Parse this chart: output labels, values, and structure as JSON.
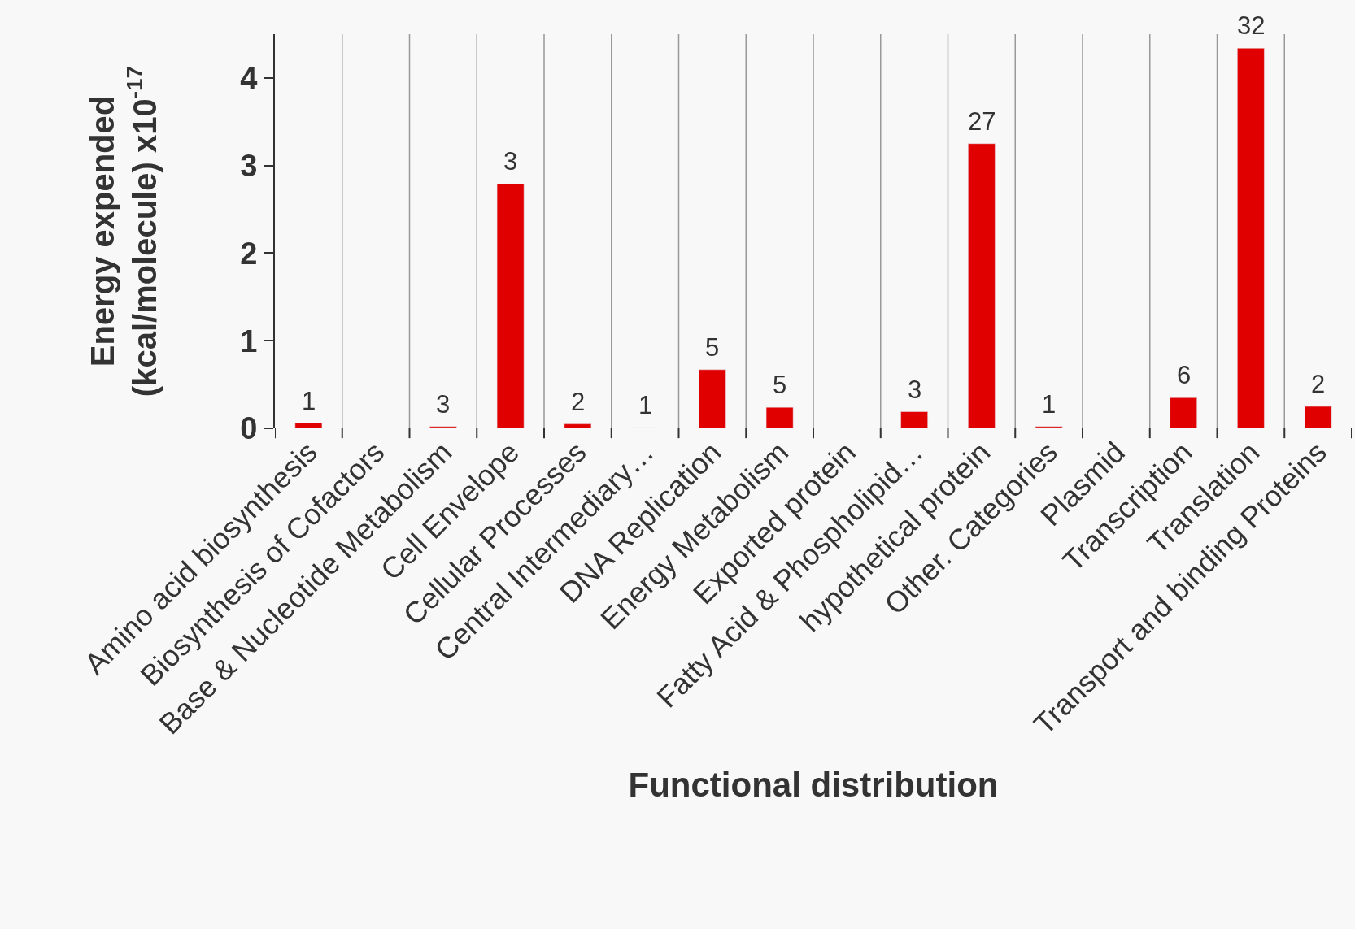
{
  "chart_data": {
    "type": "bar",
    "xlabel": "Functional distribution",
    "ylabel": "Energy expended\n(kcal/molecule) x10$^{-17}$",
    "categories": [
      "Amino acid biosynthesis",
      "Biosynthesis of Cofactors",
      "Base & Nucleotide Metabolism",
      "Cell Envelope",
      "Cellular Processes",
      "Central Intermediary…",
      "DNA Replication",
      "Energy Metabolism",
      "Exported protein",
      "Fatty Acid & Phospholipid…",
      "hypothetical protein",
      "Other. Categories",
      "Plasmid",
      "Transcription",
      "Translation",
      "Transport and binding Proteins"
    ],
    "values": [
      0.06,
      null,
      0.02,
      2.79,
      0.05,
      0.01,
      0.67,
      0.24,
      null,
      0.19,
      3.25,
      0.02,
      null,
      0.35,
      4.34,
      0.25
    ],
    "annotations": [
      {
        "text": "1",
        "x": "Amino acid biosynthesis",
        "y": 0.06
      },
      {
        "text": "3",
        "x": "Base & Nucleotide Metabolism",
        "y": 0.02
      },
      {
        "text": "3",
        "x": "Cell Envelope",
        "y": 2.79
      },
      {
        "text": "2",
        "x": "Cellular Processes",
        "y": 0.05
      },
      {
        "text": "1",
        "x": "Central Intermediary…",
        "y": 0.01
      },
      {
        "text": "5",
        "x": "DNA Replication",
        "y": 0.67
      },
      {
        "text": "5",
        "x": "Energy Metabolism",
        "y": 0.24
      },
      {
        "text": "3",
        "x": "Fatty Acid & Phospholipid…",
        "y": 0.19
      },
      {
        "text": "27",
        "x": "hypothetical protein",
        "y": 3.25
      },
      {
        "text": "1",
        "x": "Other. Categories",
        "y": 0.02
      },
      {
        "text": "6",
        "x": "Transcription",
        "y": 0.35
      },
      {
        "text": "32",
        "x": "Translation",
        "y": 4.34
      },
      {
        "text": "2",
        "x": "Transport and binding Proteins",
        "y": 0.25
      }
    ],
    "color": "#e00000",
    "ylim": [
      0,
      4.5
    ],
    "yticks": [
      0,
      1,
      2,
      3,
      4
    ],
    "grid": "x"
  }
}
